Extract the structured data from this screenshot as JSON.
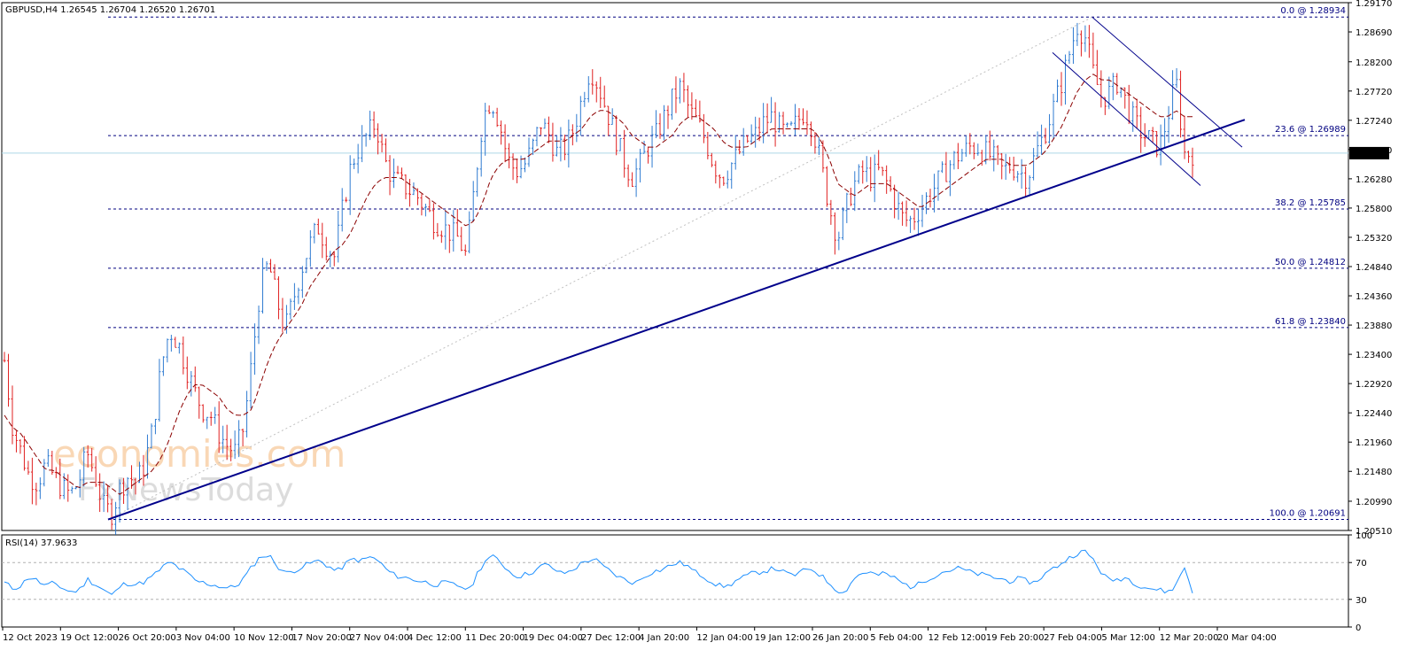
{
  "chart_data": {
    "type": "candlestick",
    "symbol_info": "GBPUSD,H4  1.26545 1.26704 1.26520 1.26701",
    "current_price": 1.26701,
    "current_price_label": "1.26701",
    "ylim": [
      1.2051,
      1.2917
    ],
    "yticks": [
      "1.29170",
      "1.28690",
      "1.28200",
      "1.27720",
      "1.27240",
      "1.26760",
      "1.26280",
      "1.25800",
      "1.25320",
      "1.24840",
      "1.24360",
      "1.23880",
      "1.23400",
      "1.22920",
      "1.22440",
      "1.21960",
      "1.21480",
      "1.20990",
      "1.20510"
    ],
    "xticks": [
      "12 Oct 2023",
      "19 Oct 12:00",
      "26 Oct 20:00",
      "3 Nov 04:00",
      "10 Nov 12:00",
      "17 Nov 20:00",
      "27 Nov 04:00",
      "4 Dec 12:00",
      "11 Dec 20:00",
      "19 Dec 04:00",
      "27 Dec 12:00",
      "4 Jan 20:00",
      "12 Jan 04:00",
      "19 Jan 12:00",
      "26 Jan 20:00",
      "5 Feb 04:00",
      "12 Feb 12:00",
      "19 Feb 20:00",
      "27 Feb 04:00",
      "5 Mar 12:00",
      "12 Mar 20:00",
      "20 Mar 04:00"
    ],
    "fib_levels": [
      {
        "label": "0.0 @ 1.28934",
        "value": 1.28934
      },
      {
        "label": "23.6 @ 1.26989",
        "value": 1.26989
      },
      {
        "label": "38.2 @ 1.25785",
        "value": 1.25785
      },
      {
        "label": "50.0 @ 1.24812",
        "value": 1.24812
      },
      {
        "label": "61.8 @ 1.23840",
        "value": 1.2384
      },
      {
        "label": "100.0 @ 1.20691",
        "value": 1.20691
      }
    ],
    "price_path": [
      1.233,
      1.222,
      1.218,
      1.214,
      1.213,
      1.216,
      1.214,
      1.212,
      1.211,
      1.213,
      1.218,
      1.214,
      1.209,
      1.208,
      1.212,
      1.214,
      1.213,
      1.216,
      1.222,
      1.232,
      1.238,
      1.236,
      1.232,
      1.228,
      1.225,
      1.224,
      1.221,
      1.219,
      1.218,
      1.222,
      1.233,
      1.245,
      1.249,
      1.243,
      1.238,
      1.243,
      1.248,
      1.252,
      1.255,
      1.252,
      1.25,
      1.258,
      1.265,
      1.268,
      1.27,
      1.272,
      1.266,
      1.263,
      1.262,
      1.261,
      1.26,
      1.258,
      1.256,
      1.255,
      1.254,
      1.253,
      1.25,
      1.262,
      1.273,
      1.276,
      1.272,
      1.266,
      1.264,
      1.265,
      1.268,
      1.272,
      1.27,
      1.267,
      1.268,
      1.271,
      1.276,
      1.281,
      1.278,
      1.274,
      1.27,
      1.266,
      1.263,
      1.265,
      1.268,
      1.27,
      1.273,
      1.276,
      1.278,
      1.274,
      1.272,
      1.269,
      1.265,
      1.263,
      1.265,
      1.267,
      1.269,
      1.27,
      1.272,
      1.273,
      1.271,
      1.27,
      1.272,
      1.274,
      1.271,
      1.265,
      1.258,
      1.253,
      1.258,
      1.262,
      1.264,
      1.263,
      1.264,
      1.262,
      1.259,
      1.256,
      1.256,
      1.258,
      1.26,
      1.262,
      1.264,
      1.266,
      1.267,
      1.268,
      1.268,
      1.267,
      1.266,
      1.264,
      1.265,
      1.264,
      1.263,
      1.267,
      1.27,
      1.274,
      1.278,
      1.283,
      1.288,
      1.286,
      1.28,
      1.276,
      1.277,
      1.279,
      1.275,
      1.272,
      1.27,
      1.269,
      1.268,
      1.273,
      1.279,
      1.267,
      1.267
    ],
    "ma_path": [
      1.224,
      1.222,
      1.221,
      1.219,
      1.217,
      1.215,
      1.215,
      1.214,
      1.213,
      1.212,
      1.213,
      1.213,
      1.213,
      1.212,
      1.211,
      1.212,
      1.213,
      1.214,
      1.215,
      1.217,
      1.22,
      1.224,
      1.227,
      1.229,
      1.229,
      1.228,
      1.227,
      1.225,
      1.224,
      1.224,
      1.225,
      1.229,
      1.233,
      1.236,
      1.238,
      1.24,
      1.242,
      1.245,
      1.247,
      1.249,
      1.251,
      1.252,
      1.254,
      1.257,
      1.26,
      1.262,
      1.263,
      1.263,
      1.263,
      1.262,
      1.261,
      1.26,
      1.259,
      1.258,
      1.257,
      1.256,
      1.255,
      1.256,
      1.259,
      1.263,
      1.265,
      1.266,
      1.266,
      1.266,
      1.267,
      1.268,
      1.269,
      1.269,
      1.269,
      1.27,
      1.271,
      1.273,
      1.274,
      1.274,
      1.273,
      1.272,
      1.27,
      1.269,
      1.268,
      1.268,
      1.269,
      1.27,
      1.272,
      1.273,
      1.273,
      1.272,
      1.271,
      1.269,
      1.268,
      1.268,
      1.268,
      1.269,
      1.27,
      1.271,
      1.271,
      1.271,
      1.271,
      1.271,
      1.271,
      1.269,
      1.266,
      1.262,
      1.261,
      1.26,
      1.261,
      1.262,
      1.262,
      1.262,
      1.261,
      1.26,
      1.259,
      1.258,
      1.259,
      1.26,
      1.261,
      1.262,
      1.263,
      1.264,
      1.265,
      1.266,
      1.266,
      1.266,
      1.265,
      1.265,
      1.265,
      1.266,
      1.267,
      1.269,
      1.271,
      1.274,
      1.277,
      1.279,
      1.28,
      1.279,
      1.279,
      1.278,
      1.277,
      1.276,
      1.275,
      1.274,
      1.273,
      1.273,
      1.274,
      1.273,
      1.273
    ],
    "trendline": {
      "start": 1.2069,
      "end": 1.2725
    },
    "channel": {
      "upper_start": 1.2893,
      "upper_end": 1.268,
      "lower_start": 1.2835,
      "lower_end": 1.2617
    },
    "rsi": {
      "label": "RSI(14) 37.9633",
      "ylim": [
        0,
        100
      ],
      "yticks": [
        "100",
        "70",
        "30",
        "0"
      ],
      "levels": [
        70,
        30
      ],
      "values": [
        48,
        42,
        45,
        55,
        50,
        44,
        48,
        42,
        38,
        40,
        52,
        46,
        40,
        34,
        45,
        48,
        46,
        50,
        56,
        65,
        70,
        64,
        58,
        50,
        48,
        46,
        44,
        42,
        45,
        55,
        68,
        78,
        76,
        65,
        58,
        62,
        66,
        70,
        72,
        66,
        60,
        68,
        74,
        72,
        76,
        72,
        62,
        56,
        54,
        52,
        50,
        48,
        46,
        48,
        46,
        44,
        40,
        60,
        74,
        76,
        68,
        58,
        55,
        58,
        62,
        68,
        64,
        58,
        60,
        66,
        72,
        74,
        66,
        60,
        54,
        50,
        48,
        55,
        60,
        62,
        66,
        70,
        68,
        60,
        56,
        50,
        45,
        44,
        50,
        54,
        58,
        60,
        62,
        64,
        58,
        56,
        60,
        64,
        58,
        50,
        42,
        36,
        50,
        58,
        60,
        56,
        58,
        54,
        48,
        44,
        46,
        52,
        56,
        60,
        62,
        64,
        60,
        58,
        56,
        54,
        52,
        50,
        52,
        50,
        48,
        56,
        62,
        68,
        74,
        80,
        82,
        74,
        60,
        50,
        52,
        54,
        48,
        44,
        42,
        40,
        38,
        45,
        66,
        38
      ]
    }
  },
  "watermarks": {
    "brand1": "economies.com",
    "brand2": "FxNewsToday"
  },
  "colors": {
    "bull": "#2f7bd1",
    "bear": "#e02020",
    "ma": "#8b0000",
    "trend": "#00008b",
    "fib": "#000080",
    "price_line": "#add8e6",
    "rsi": "#1e90ff",
    "border": "#000000"
  }
}
